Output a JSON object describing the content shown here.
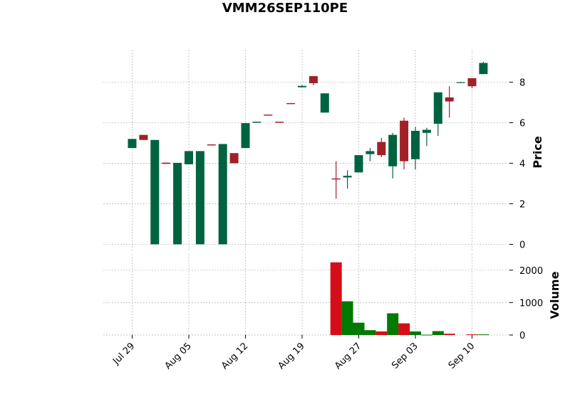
{
  "chart_data": {
    "type": "candlestick",
    "title": "VMM26SEP110PE",
    "price_panel": {
      "ylabel": "Price",
      "ylim": [
        -0.3,
        9.6
      ],
      "yticks": [
        0,
        2,
        4,
        6,
        8
      ],
      "ytick_labels": [
        "0",
        "2",
        "4",
        "6",
        "8"
      ],
      "grid": true
    },
    "volume_panel": {
      "ylabel": "Volume",
      "ylim": [
        0,
        2500
      ],
      "yticks": [
        0,
        1000,
        2000
      ],
      "ytick_labels": [
        "0",
        "1000",
        "2000"
      ],
      "grid": true
    },
    "x_tick_labels": [
      {
        "label": "Jul 29",
        "index": 0
      },
      {
        "label": "Aug 05",
        "index": 5
      },
      {
        "label": "Aug 12",
        "index": 10
      },
      {
        "label": "Aug 19",
        "index": 15
      },
      {
        "label": "Aug 27",
        "index": 20
      },
      {
        "label": "Sep 03",
        "index": 25
      },
      {
        "label": "Sep 10",
        "index": 30
      }
    ],
    "colors": {
      "up_candle": "#006340",
      "down_candle": "#A02128",
      "up_volume": "#007a00",
      "down_volume": "#d50d18",
      "grid": "#b0b0b0"
    },
    "candles": [
      {
        "open": 4.75,
        "high": 5.2,
        "low": 4.75,
        "close": 5.2
      },
      {
        "open": 5.4,
        "high": 5.4,
        "low": 5.15,
        "close": 5.15
      },
      {
        "open": 0.0,
        "high": 5.15,
        "low": 0.0,
        "close": 5.15
      },
      {
        "open": 4.03,
        "high": 4.03,
        "low": 3.97,
        "close": 3.97
      },
      {
        "open": 0.0,
        "high": 4.02,
        "low": 0.0,
        "close": 4.02
      },
      {
        "open": 3.95,
        "high": 4.6,
        "low": 3.95,
        "close": 4.6
      },
      {
        "open": 0.0,
        "high": 4.6,
        "low": 0.0,
        "close": 4.6
      },
      {
        "open": 4.93,
        "high": 4.93,
        "low": 4.88,
        "close": 4.88
      },
      {
        "open": 0.0,
        "high": 4.95,
        "low": 0.0,
        "close": 4.95
      },
      {
        "open": 4.5,
        "high": 4.5,
        "low": 4.0,
        "close": 4.0
      },
      {
        "open": 4.75,
        "high": 5.98,
        "low": 4.75,
        "close": 5.98
      },
      {
        "open": 6.0,
        "high": 6.05,
        "low": 6.0,
        "close": 6.05
      },
      {
        "open": 6.4,
        "high": 6.4,
        "low": 6.35,
        "close": 6.35
      },
      {
        "open": 6.05,
        "high": 6.05,
        "low": 6.0,
        "close": 6.0
      },
      {
        "open": 6.97,
        "high": 6.97,
        "low": 6.92,
        "close": 6.92
      },
      {
        "open": 7.75,
        "high": 7.85,
        "low": 7.75,
        "close": 7.82
      },
      {
        "open": 8.3,
        "high": 8.3,
        "low": 7.85,
        "close": 7.95
      },
      {
        "open": 6.5,
        "high": 7.45,
        "low": 6.5,
        "close": 7.45
      },
      {
        "open": 3.25,
        "high": 4.1,
        "low": 2.25,
        "close": 3.2
      },
      {
        "open": 3.3,
        "high": 3.65,
        "low": 2.75,
        "close": 3.38
      },
      {
        "open": 3.55,
        "high": 4.4,
        "low": 3.55,
        "close": 4.4
      },
      {
        "open": 4.45,
        "high": 4.75,
        "low": 4.1,
        "close": 4.6
      },
      {
        "open": 5.05,
        "high": 5.25,
        "low": 4.3,
        "close": 4.4
      },
      {
        "open": 3.85,
        "high": 5.5,
        "low": 3.25,
        "close": 5.4
      },
      {
        "open": 6.1,
        "high": 6.25,
        "low": 3.7,
        "close": 4.1
      },
      {
        "open": 4.2,
        "high": 5.8,
        "low": 3.7,
        "close": 5.6
      },
      {
        "open": 5.5,
        "high": 5.75,
        "low": 4.85,
        "close": 5.65
      },
      {
        "open": 5.95,
        "high": 7.5,
        "low": 5.35,
        "close": 7.5
      },
      {
        "open": 7.25,
        "high": 7.8,
        "low": 6.25,
        "close": 7.05
      },
      {
        "open": 8.0,
        "high": 8.02,
        "low": 7.98,
        "close": 8.0
      },
      {
        "open": 8.2,
        "high": 8.2,
        "low": 7.7,
        "close": 7.8
      },
      {
        "open": 8.4,
        "high": 9.0,
        "low": 8.4,
        "close": 8.95
      }
    ],
    "volume": [
      0,
      0,
      0,
      0,
      0,
      0,
      0,
      0,
      0,
      0,
      0,
      0,
      0,
      0,
      0,
      0,
      0,
      0,
      2240,
      1040,
      380,
      150,
      110,
      670,
      360,
      110,
      10,
      120,
      40,
      0,
      20,
      20
    ]
  }
}
